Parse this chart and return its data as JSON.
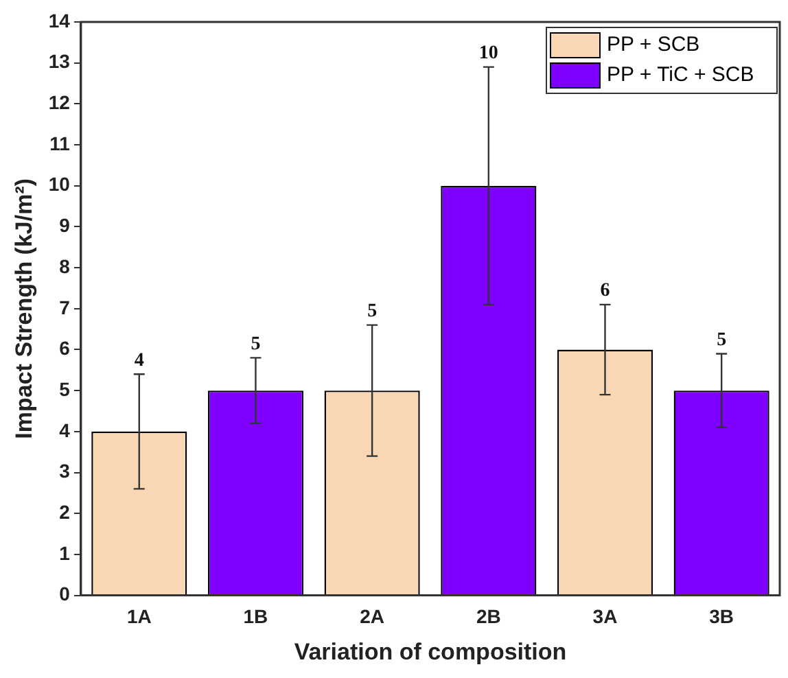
{
  "chart_data": {
    "type": "bar",
    "xlabel": "Variation of composition",
    "ylabel": "Impact Strength (kJ/m²)",
    "categories": [
      "1A",
      "1B",
      "2A",
      "2B",
      "3A",
      "3B"
    ],
    "series": [
      {
        "name": "PP + SCB",
        "color": "#f9d7b5",
        "values": [
          4,
          null,
          5,
          null,
          6,
          null
        ],
        "errors": [
          [
            2.6,
            5.4
          ],
          null,
          [
            3.4,
            6.6
          ],
          null,
          [
            4.9,
            7.1
          ],
          null
        ]
      },
      {
        "name": "PP + TiC + SCB",
        "color": "#7f00ff",
        "values": [
          null,
          5,
          null,
          10,
          null,
          5
        ],
        "errors": [
          null,
          [
            4.2,
            5.8
          ],
          null,
          [
            7.1,
            12.9
          ],
          null,
          [
            4.1,
            5.9
          ]
        ]
      }
    ],
    "ylim": [
      0,
      14
    ],
    "yticks": [
      0,
      1,
      2,
      3,
      4,
      5,
      6,
      7,
      8,
      9,
      10,
      11,
      12,
      13,
      14
    ],
    "annotations": [
      {
        "text": "4",
        "x": "1A",
        "y": 5.4
      },
      {
        "text": "5",
        "x": "1B",
        "y": 5.8
      },
      {
        "text": "5",
        "x": "2A",
        "y": 6.6
      },
      {
        "text": "10",
        "x": "2B",
        "y": 12.9
      },
      {
        "text": "6",
        "x": "3A",
        "y": 7.1
      },
      {
        "text": "5",
        "x": "3B",
        "y": 5.9
      }
    ],
    "grid": false,
    "legend": "top right"
  }
}
